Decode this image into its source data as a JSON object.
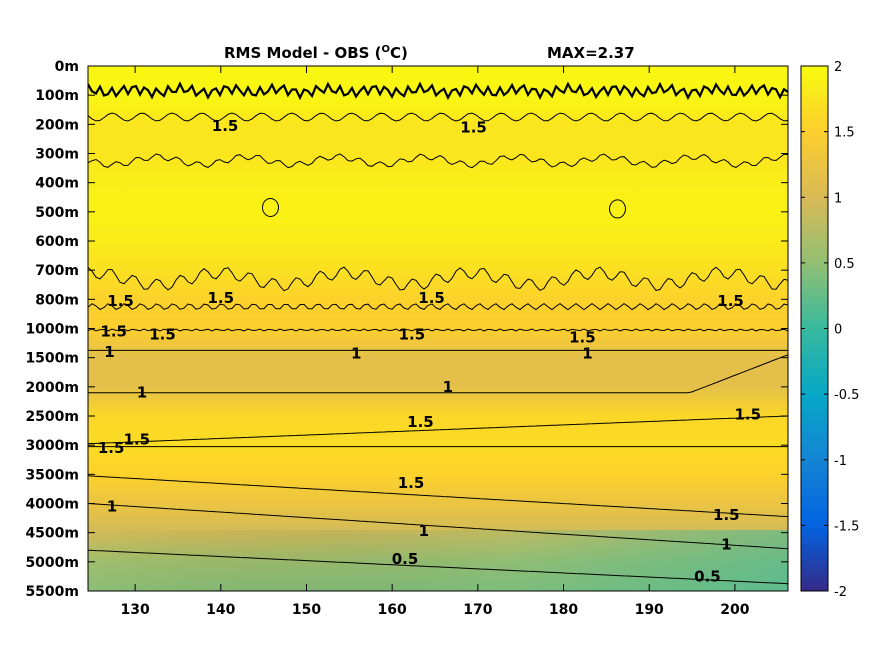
{
  "chart_data": {
    "type": "heatmap",
    "title_left": "RMS Model - OBS (",
    "title_sup": "O",
    "title_close": "C)",
    "title_max": "MAX=2.37",
    "x_ticks": [
      130,
      140,
      150,
      160,
      170,
      180,
      190,
      200
    ],
    "xlim": [
      124.5,
      206.2
    ],
    "y_ticks": [
      "0m",
      "100m",
      "200m",
      "300m",
      "400m",
      "500m",
      "600m",
      "700m",
      "800m",
      "1000m",
      "1500m",
      "2000m",
      "2500m",
      "3000m",
      "3500m",
      "4000m",
      "4500m",
      "5000m",
      "5500m"
    ],
    "colorbar": {
      "ticks": [
        "2",
        "1.5",
        "1",
        "0.5",
        "0",
        "-0.5",
        "-1",
        "-1.5",
        "-2"
      ],
      "range": [
        -2,
        2
      ],
      "colormap": "parula"
    },
    "depth_profile": [
      {
        "depth": "0m",
        "value": 1.95
      },
      {
        "depth": "100m",
        "value": 1.95
      },
      {
        "depth": "200m",
        "value": 1.75
      },
      {
        "depth": "300m",
        "value": 1.75
      },
      {
        "depth": "400m",
        "value": 1.85
      },
      {
        "depth": "500m",
        "value": 1.9
      },
      {
        "depth": "600m",
        "value": 1.82
      },
      {
        "depth": "700m",
        "value": 1.7
      },
      {
        "depth": "800m",
        "value": 1.55
      },
      {
        "depth": "1000m",
        "value": 1.5
      },
      {
        "depth": "1500m",
        "value": 1.15
      },
      {
        "depth": "2000m",
        "value": 1.15
      },
      {
        "depth": "2500m",
        "value": 1.6
      },
      {
        "depth": "3000m",
        "value": 1.65
      },
      {
        "depth": "3500m",
        "value": 1.55
      },
      {
        "depth": "4000m",
        "value": 1.25
      },
      {
        "depth": "4500m",
        "value": 0.95
      },
      {
        "depth": "5000m",
        "value": 0.6
      },
      {
        "depth": "5500m",
        "value": 0.45
      }
    ],
    "contour_labels": [
      {
        "text": "1.5",
        "lon": 127.5,
        "depth_idx": 9.1
      },
      {
        "text": "1.5",
        "lon": 133.2,
        "depth_idx": 9.2
      },
      {
        "text": "1.5",
        "lon": 162.3,
        "depth_idx": 9.2
      },
      {
        "text": "1.5",
        "lon": 182.2,
        "depth_idx": 9.3
      },
      {
        "text": "1",
        "lon": 127.0,
        "depth_idx": 9.8
      },
      {
        "text": "1",
        "lon": 155.8,
        "depth_idx": 9.85
      },
      {
        "text": "1",
        "lon": 182.8,
        "depth_idx": 9.85
      },
      {
        "text": "1",
        "lon": 130.8,
        "depth_idx": 11.2
      },
      {
        "text": "1",
        "lon": 166.5,
        "depth_idx": 11.0
      },
      {
        "text": "1.5",
        "lon": 130.2,
        "depth_idx": 12.8
      },
      {
        "text": "1.5",
        "lon": 127.2,
        "depth_idx": 13.1
      },
      {
        "text": "1.5",
        "lon": 163.3,
        "depth_idx": 12.2
      },
      {
        "text": "1.5",
        "lon": 201.5,
        "depth_idx": 11.95
      },
      {
        "text": "1.5",
        "lon": 162.2,
        "depth_idx": 14.3
      },
      {
        "text": "1.5",
        "lon": 199.0,
        "depth_idx": 15.4
      },
      {
        "text": "1",
        "lon": 127.3,
        "depth_idx": 15.1
      },
      {
        "text": "1",
        "lon": 163.7,
        "depth_idx": 15.95
      },
      {
        "text": "1",
        "lon": 199.0,
        "depth_idx": 16.4
      },
      {
        "text": "0.5",
        "lon": 161.5,
        "depth_idx": 16.9
      },
      {
        "text": "0.5",
        "lon": 196.8,
        "depth_idx": 17.5
      },
      {
        "text": "1.5",
        "lon": 140.5,
        "depth_idx": 2.05
      },
      {
        "text": "1.5",
        "lon": 169.5,
        "depth_idx": 2.1
      },
      {
        "text": "1.5",
        "lon": 128.3,
        "depth_idx": 8.05
      },
      {
        "text": "1.5",
        "lon": 140.0,
        "depth_idx": 7.95
      },
      {
        "text": "1.5",
        "lon": 164.6,
        "depth_idx": 7.95
      },
      {
        "text": "1.5",
        "lon": 199.5,
        "depth_idx": 8.05
      }
    ]
  }
}
